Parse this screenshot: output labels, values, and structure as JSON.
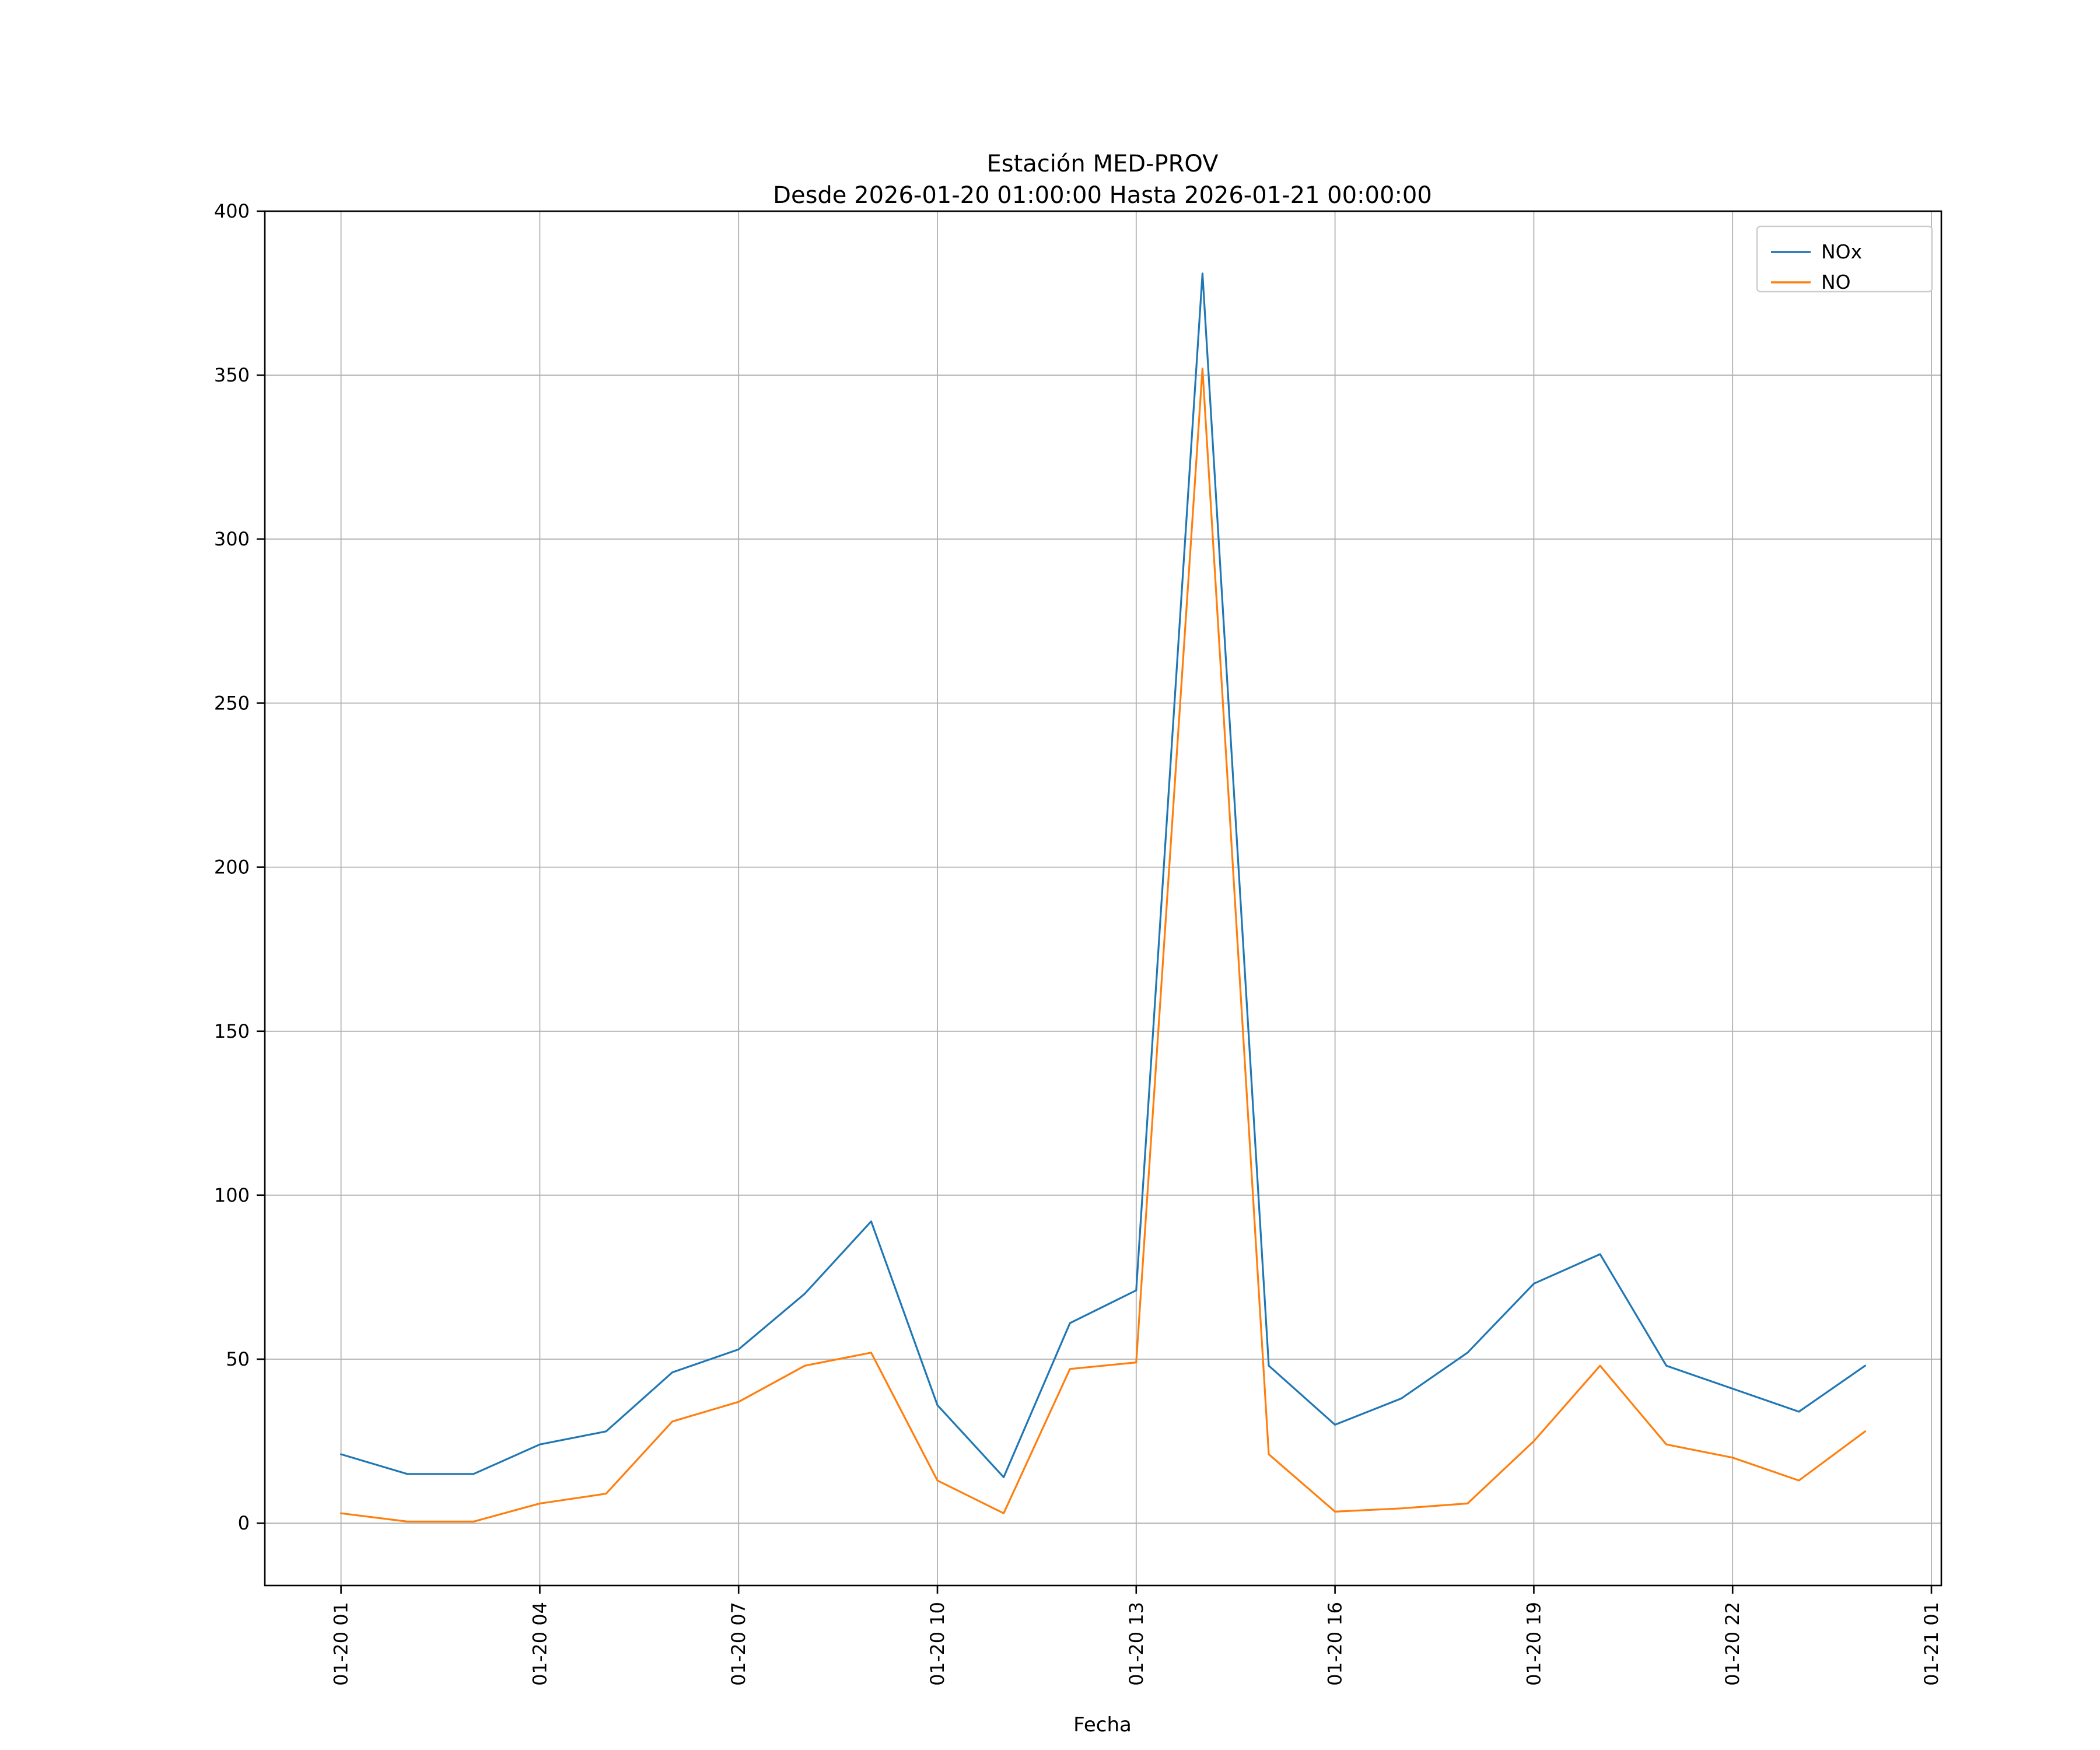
{
  "colors": {
    "background": "#ffffff",
    "grid": "#b0b0b0",
    "axis": "#000000",
    "legend_border": "#cccccc",
    "nox": "#1f77b4",
    "no": "#ff7f0e"
  },
  "chart_data": {
    "type": "line",
    "title": "Estación MED-PROV",
    "subtitle": "Desde 2026-01-20 01:00:00 Hasta 2026-01-21 00:00:00",
    "xlabel": "Fecha",
    "ylabel": "",
    "grid": true,
    "legend": {
      "position": "upper right",
      "entries": [
        "NOx",
        "NO"
      ]
    },
    "xlim": [
      -0.15,
      25.15
    ],
    "ylim": [
      -19,
      400
    ],
    "y_ticks": [
      0,
      50,
      100,
      150,
      200,
      250,
      300,
      350,
      400
    ],
    "x_ticks": {
      "positions": [
        1,
        4,
        7,
        10,
        13,
        16,
        19,
        22,
        25
      ],
      "labels": [
        "01-20 01",
        "01-20 04",
        "01-20 07",
        "01-20 10",
        "01-20 13",
        "01-20 16",
        "01-20 19",
        "01-20 22",
        "01-21 01"
      ]
    },
    "x": [
      1,
      2,
      3,
      4,
      5,
      6,
      7,
      8,
      9,
      10,
      11,
      12,
      13,
      14,
      15,
      16,
      17,
      18,
      19,
      20,
      21,
      22,
      23,
      24
    ],
    "series": [
      {
        "name": "NOx",
        "color": "#1f77b4",
        "values": [
          21,
          15,
          15,
          24,
          28,
          46,
          53,
          70,
          92,
          36,
          14,
          61,
          71,
          381,
          48,
          30,
          38,
          52,
          73,
          82,
          48,
          41,
          34,
          48
        ]
      },
      {
        "name": "NO",
        "color": "#ff7f0e",
        "values": [
          3,
          0.5,
          0.5,
          6,
          9,
          31,
          37,
          48,
          52,
          13,
          3,
          47,
          49,
          352,
          21,
          3.5,
          4.5,
          6,
          25,
          48,
          24,
          20,
          13,
          28
        ]
      }
    ]
  }
}
